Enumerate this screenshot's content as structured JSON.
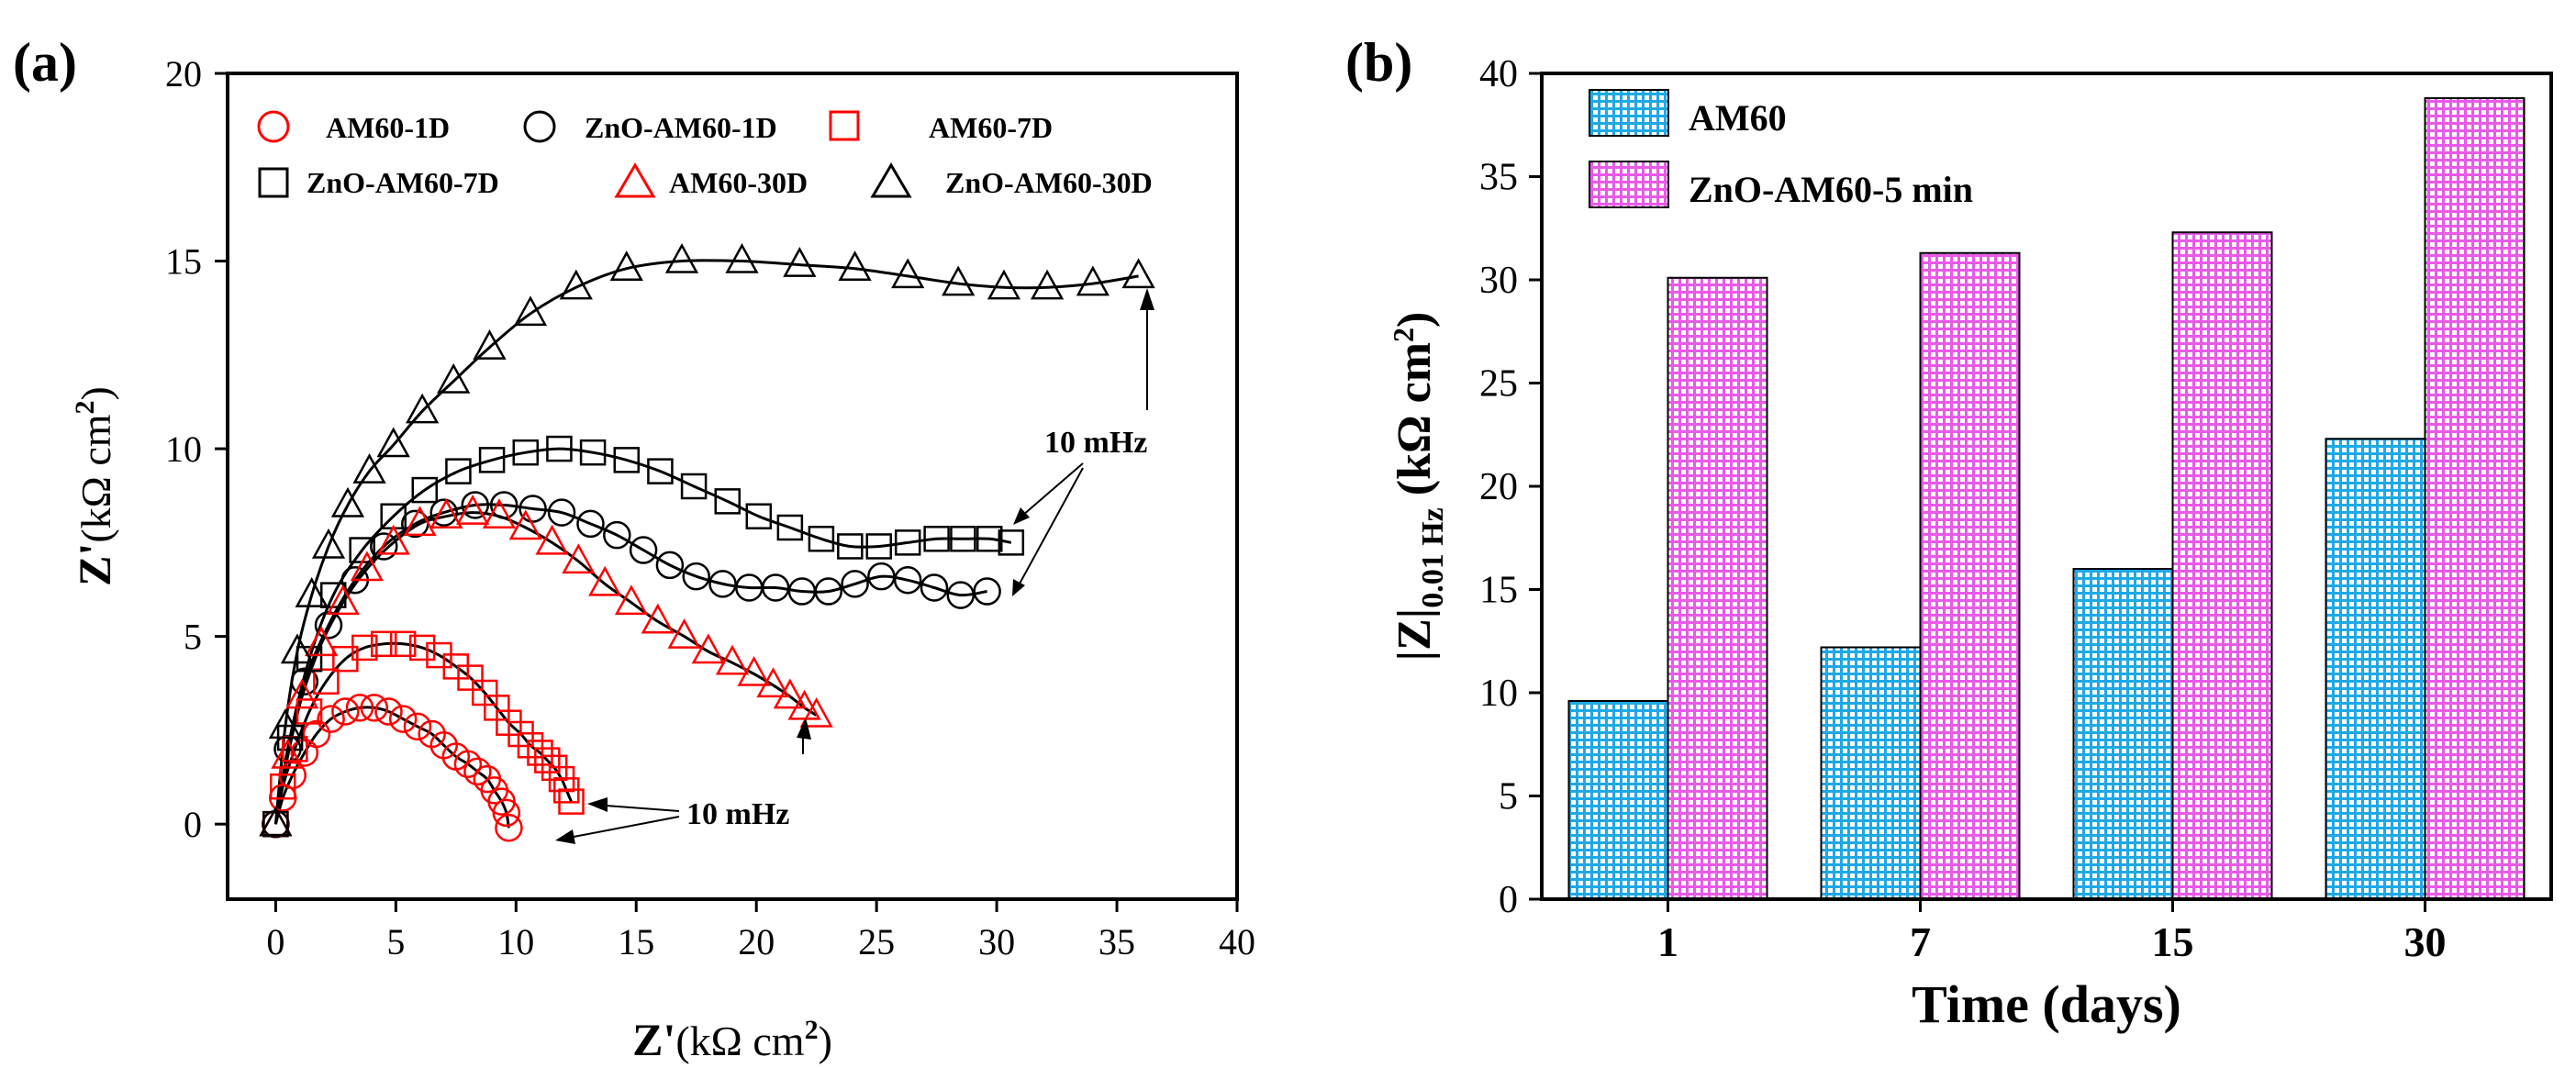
{
  "chart_data": [
    {
      "type": "scatter",
      "panel_label": "(a)",
      "xlabel_main": "Z'",
      "xlabel_unit": "(kΩ cm",
      "xlabel_sup": "2",
      "xlabel_close": ")",
      "ylabel_main": "Z'",
      "ylabel_unit": "(kΩ cm",
      "ylabel_sup": "2",
      "ylabel_close": ")",
      "xlim": [
        -2,
        40
      ],
      "ylim": [
        -2,
        20
      ],
      "xticks": [
        0,
        5,
        10,
        15,
        20,
        25,
        30,
        35,
        40
      ],
      "yticks": [
        0,
        5,
        10,
        15,
        20
      ],
      "legend": [
        {
          "label": "AM60-1D",
          "marker": "circle",
          "color": "#ff0000"
        },
        {
          "label": "ZnO-AM60-1D",
          "marker": "circle",
          "color": "#000000"
        },
        {
          "label": "AM60-7D",
          "marker": "square",
          "color": "#ff0000"
        },
        {
          "label": "ZnO-AM60-7D",
          "marker": "square",
          "color": "#000000"
        },
        {
          "label": "AM60-30D",
          "marker": "triangle",
          "color": "#ff0000"
        },
        {
          "label": "ZnO-AM60-30D",
          "marker": "triangle",
          "color": "#000000"
        }
      ],
      "annotations": [
        {
          "text": "10 mHz",
          "anchor": "upper"
        },
        {
          "text": "10 mHz",
          "anchor": "lower"
        }
      ],
      "series": [
        {
          "name": "AM60-1D",
          "marker": "circle",
          "color": "#ff0000",
          "x": [
            0,
            0.3,
            0.7,
            1.2,
            1.7,
            2.3,
            2.9,
            3.5,
            4.1,
            4.7,
            5.3,
            5.9,
            6.5,
            7.0,
            7.5,
            8.0,
            8.4,
            8.8,
            9.1,
            9.4,
            9.6,
            9.7
          ],
          "y": [
            0,
            0.7,
            1.3,
            1.9,
            2.4,
            2.8,
            3.0,
            3.1,
            3.1,
            3.0,
            2.8,
            2.6,
            2.4,
            2.1,
            1.8,
            1.6,
            1.4,
            1.2,
            0.9,
            0.6,
            0.3,
            -0.1
          ]
        },
        {
          "name": "ZnO-AM60-1D",
          "marker": "circle",
          "color": "#000000",
          "x": [
            0,
            0.5,
            1.2,
            2.2,
            3.3,
            4.5,
            5.8,
            7.0,
            8.3,
            9.5,
            10.7,
            11.9,
            13.1,
            14.2,
            15.3,
            16.4,
            17.5,
            18.6,
            19.7,
            20.8,
            21.9,
            23.0,
            24.1,
            25.2,
            26.3,
            27.4,
            28.5,
            29.6
          ],
          "y": [
            0,
            2.0,
            3.8,
            5.3,
            6.5,
            7.4,
            8.0,
            8.3,
            8.5,
            8.5,
            8.4,
            8.3,
            8.0,
            7.7,
            7.3,
            6.9,
            6.6,
            6.4,
            6.3,
            6.3,
            6.2,
            6.2,
            6.4,
            6.6,
            6.5,
            6.3,
            6.1,
            6.2
          ]
        },
        {
          "name": "AM60-7D",
          "marker": "square",
          "color": "#ff0000",
          "x": [
            0,
            0.3,
            0.8,
            1.4,
            2.1,
            2.9,
            3.7,
            4.5,
            5.3,
            6.1,
            6.8,
            7.5,
            8.1,
            8.7,
            9.2,
            9.7,
            10.2,
            10.6,
            11.0,
            11.3,
            11.6,
            11.9,
            12.1,
            12.3
          ],
          "y": [
            0,
            1.0,
            2.0,
            3.0,
            3.8,
            4.4,
            4.7,
            4.8,
            4.8,
            4.7,
            4.5,
            4.2,
            3.9,
            3.5,
            3.1,
            2.7,
            2.4,
            2.1,
            1.9,
            1.7,
            1.5,
            1.2,
            0.9,
            0.6
          ]
        },
        {
          "name": "ZnO-AM60-7D",
          "marker": "square",
          "color": "#000000",
          "x": [
            0,
            0.6,
            1.4,
            2.4,
            3.6,
            4.9,
            6.2,
            7.6,
            9.0,
            10.4,
            11.8,
            13.2,
            14.6,
            16.0,
            17.4,
            18.8,
            20.1,
            21.4,
            22.7,
            23.9,
            25.1,
            26.3,
            27.5,
            28.6,
            29.7,
            30.6
          ],
          "y": [
            0,
            2.3,
            4.4,
            6.1,
            7.3,
            8.2,
            8.9,
            9.4,
            9.7,
            9.9,
            10.0,
            9.9,
            9.7,
            9.4,
            9.0,
            8.6,
            8.2,
            7.9,
            7.6,
            7.4,
            7.4,
            7.5,
            7.6,
            7.6,
            7.6,
            7.5
          ]
        },
        {
          "name": "AM60-30D",
          "marker": "triangle",
          "color": "#ff0000",
          "x": [
            0,
            0.5,
            1.1,
            1.9,
            2.8,
            3.8,
            4.9,
            6.0,
            7.1,
            8.2,
            9.3,
            10.4,
            11.5,
            12.6,
            13.7,
            14.8,
            15.9,
            17.0,
            18.0,
            19.0,
            19.9,
            20.7,
            21.4,
            22.0,
            22.5
          ],
          "y": [
            0,
            1.8,
            3.4,
            4.8,
            5.9,
            6.8,
            7.5,
            8.0,
            8.2,
            8.3,
            8.2,
            7.9,
            7.5,
            7.0,
            6.4,
            5.9,
            5.4,
            5.0,
            4.6,
            4.3,
            4.0,
            3.7,
            3.4,
            3.1,
            2.9
          ]
        },
        {
          "name": "ZnO-AM60-30D",
          "marker": "triangle",
          "color": "#000000",
          "x": [
            0,
            0.4,
            0.9,
            1.5,
            2.2,
            3.0,
            3.9,
            4.9,
            6.1,
            7.4,
            8.9,
            10.6,
            12.5,
            14.6,
            16.9,
            19.4,
            21.8,
            24.1,
            26.3,
            28.4,
            30.3,
            32.1,
            34.0,
            35.9
          ],
          "y": [
            0,
            2.6,
            4.6,
            6.1,
            7.4,
            8.5,
            9.4,
            10.1,
            11.0,
            11.8,
            12.7,
            13.6,
            14.3,
            14.8,
            15.0,
            15.0,
            14.9,
            14.8,
            14.6,
            14.4,
            14.3,
            14.3,
            14.4,
            14.6
          ]
        }
      ]
    },
    {
      "type": "bar",
      "panel_label": "(b)",
      "title": "",
      "xlabel": "Time (days)",
      "ylabel_pre": "|Z|",
      "ylabel_sub": "0.01 Hz",
      "ylabel_post": " (kΩ cm",
      "ylabel_sup": "2",
      "ylabel_close": ")",
      "ylim": [
        0,
        40
      ],
      "yticks": [
        0,
        5,
        10,
        15,
        20,
        25,
        30,
        35,
        40
      ],
      "categories": [
        "1",
        "7",
        "15",
        "30"
      ],
      "series": [
        {
          "name": "AM60",
          "values": [
            9.6,
            12.2,
            16.0,
            22.3
          ],
          "color": "#33bbee"
        },
        {
          "name": "ZnO-AM60-5 min",
          "values": [
            30.1,
            31.3,
            32.3,
            38.8
          ],
          "color": "#ee77ee"
        }
      ]
    }
  ]
}
